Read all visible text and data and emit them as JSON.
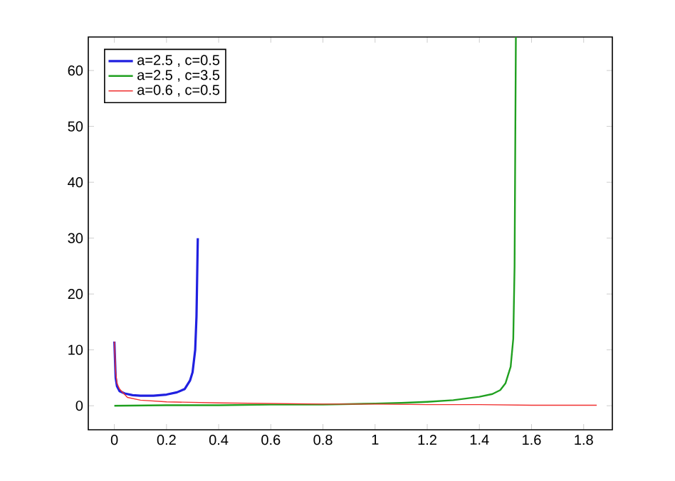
{
  "chart_data": {
    "type": "line",
    "xlim": [
      -0.1,
      1.91
    ],
    "ylim": [
      -4.3,
      66
    ],
    "xticks": [
      0,
      0.2,
      0.4,
      0.6,
      0.8,
      1,
      1.2,
      1.4,
      1.6,
      1.8
    ],
    "yticks": [
      0,
      10,
      20,
      30,
      40,
      50,
      60
    ],
    "legend": "top left",
    "grid": false,
    "line_style": "solid",
    "marker": "none",
    "series": [
      {
        "name": "a=2.5 , c=0.5",
        "color": "#2020e0",
        "x": [
          0,
          0.005,
          0.01,
          0.02,
          0.04,
          0.07,
          0.1,
          0.15,
          0.2,
          0.24,
          0.27,
          0.29,
          0.3,
          0.31,
          0.315,
          0.32
        ],
        "values": [
          11.5,
          5,
          3.5,
          2.6,
          2.2,
          1.9,
          1.8,
          1.8,
          2,
          2.4,
          3,
          4.5,
          6,
          10,
          16,
          30
        ]
      },
      {
        "name": "a=2.5 , c=3.5",
        "color": "#20a020",
        "x": [
          0,
          0.2,
          0.4,
          0.6,
          0.8,
          1,
          1.1,
          1.2,
          1.3,
          1.4,
          1.45,
          1.48,
          1.5,
          1.52,
          1.53,
          1.535,
          1.54
        ],
        "values": [
          0,
          0.1,
          0.1,
          0.2,
          0.2,
          0.4,
          0.5,
          0.7,
          1,
          1.6,
          2.1,
          2.8,
          4,
          7,
          12,
          25,
          66
        ]
      },
      {
        "name": "a=0.6 , c=0.5",
        "color": "#f03030",
        "x": [
          0,
          0.005,
          0.01,
          0.02,
          0.05,
          0.1,
          0.2,
          0.4,
          0.6,
          0.8,
          1,
          1.2,
          1.4,
          1.6,
          1.85
        ],
        "values": [
          11.5,
          6,
          4,
          3,
          1.5,
          1,
          0.7,
          0.5,
          0.4,
          0.3,
          0.3,
          0.2,
          0.2,
          0.1,
          0.1
        ]
      }
    ]
  }
}
